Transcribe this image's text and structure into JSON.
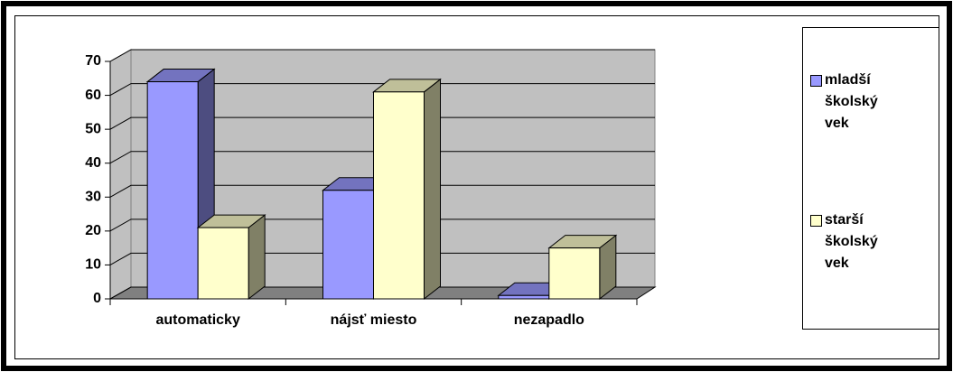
{
  "chart_data": {
    "type": "bar3d",
    "categories": [
      "automaticky",
      "nájsť miesto",
      "nezapadlo"
    ],
    "series": [
      {
        "name": "mladší školský vek",
        "color": "#9999ff",
        "values": [
          64,
          32,
          1
        ]
      },
      {
        "name": "starší školský vek",
        "color": "#ffffcc",
        "values": [
          21,
          61,
          15
        ]
      }
    ],
    "ylim": [
      0,
      70
    ],
    "yticks": [
      0,
      10,
      20,
      30,
      40,
      50,
      60,
      70
    ],
    "grid": true,
    "legend": "right"
  }
}
